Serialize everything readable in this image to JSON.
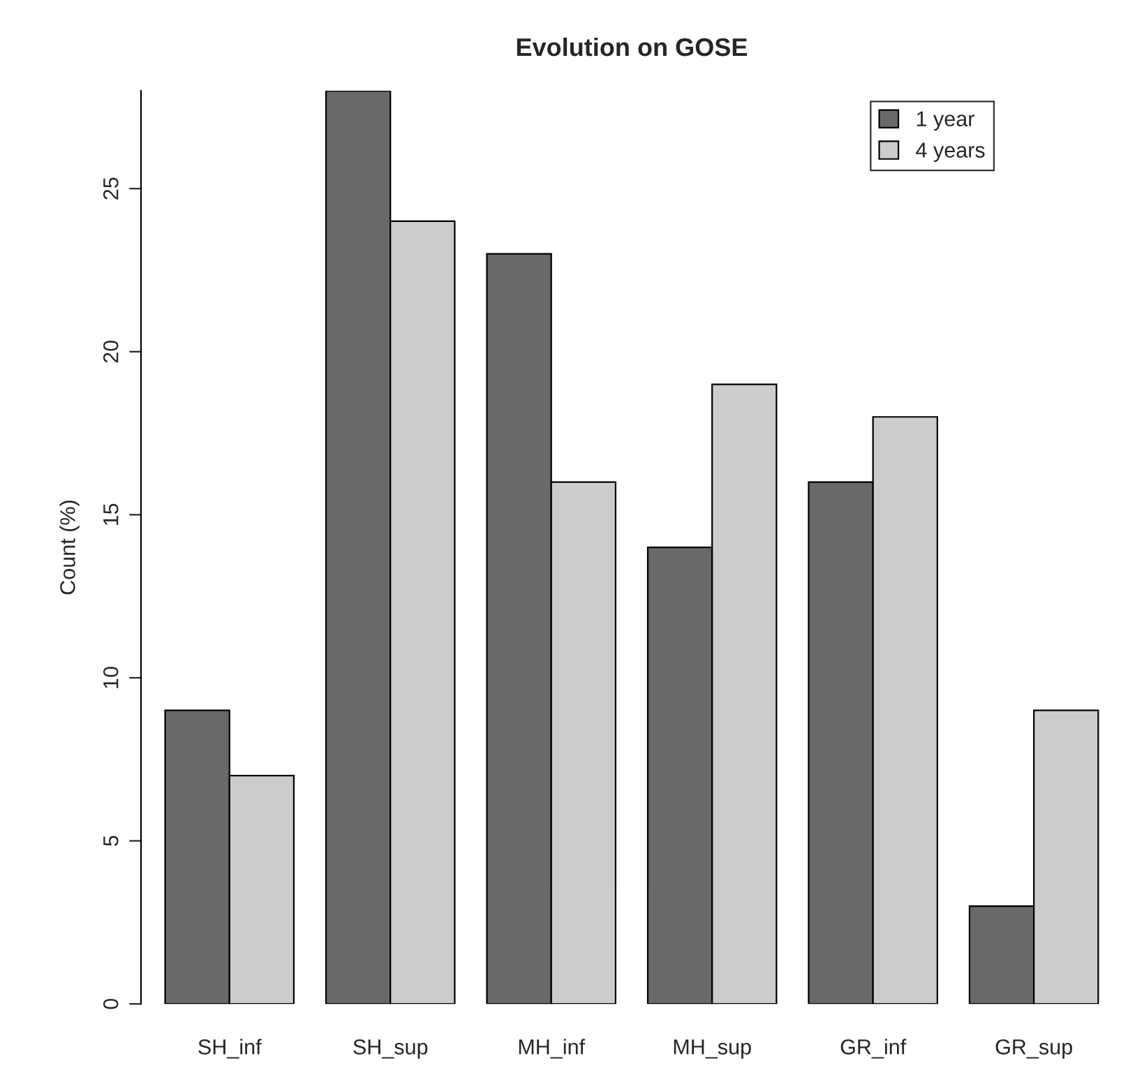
{
  "chart_data": {
    "type": "bar",
    "title": "Evolution on GOSE",
    "ylabel": "Count (%)",
    "categories": [
      "SH_inf",
      "SH_sup",
      "MH_inf",
      "MH_sup",
      "GR_inf",
      "GR_sup"
    ],
    "series": [
      {
        "name": "1 year",
        "color": "#696969",
        "values": [
          9,
          28,
          23,
          14,
          16,
          3
        ]
      },
      {
        "name": "4 years",
        "color": "#cccccc",
        "values": [
          7,
          24,
          16,
          19,
          18,
          9
        ]
      }
    ],
    "ylim": [
      0,
      28
    ],
    "yticks": [
      0,
      5,
      10,
      15,
      20,
      25
    ],
    "grid": false,
    "legend": "top right"
  }
}
